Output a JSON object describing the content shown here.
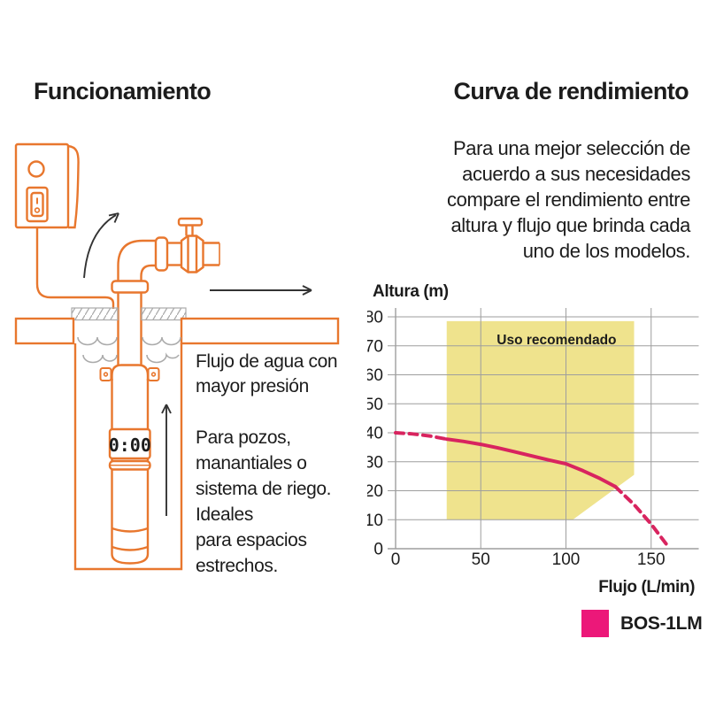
{
  "colors": {
    "diagram_orange": "#E8772E",
    "diagram_gray": "#ababab",
    "grid_gray": "#9e9e9e",
    "text_black": "#1c1c1c",
    "curve_pink": "#d8245f",
    "legend_pink": "#ec1879",
    "region_yellow": "#efe38d"
  },
  "left": {
    "title": "Funcionamiento",
    "caption_flow": "Flujo de agua con\nmayor presión",
    "caption_use": "Para pozos,\nmanantiales o\nsistema de riego.\nIdeales\npara espacios\nestrechos.",
    "pump_display": "0:00"
  },
  "right": {
    "title": "Curva de rendimiento",
    "paragraph": "Para una mejor selección de\nacuerdo a sus necesidades\ncompare el rendimiento entre\naltura y flujo que brinda cada\nuno de los modelos.",
    "legend": {
      "model": "BOS-1LM",
      "color": "#ec1879"
    }
  },
  "chart_data": {
    "type": "line",
    "title": "Curva de rendimiento",
    "xlabel": "Flujo (L/min)",
    "ylabel": "Altura (m)",
    "xlim": [
      0,
      178
    ],
    "ylim": [
      0,
      82
    ],
    "x_ticks": [
      0,
      50,
      100,
      150
    ],
    "y_ticks": [
      0,
      10,
      20,
      30,
      40,
      50,
      60,
      70,
      80
    ],
    "grid": true,
    "recommended_region": {
      "label": "Uso recomendado",
      "label_x": 94.5,
      "label_y": 70.5,
      "color": "#efe38d",
      "polygon": [
        [
          30,
          10
        ],
        [
          30,
          78.5
        ],
        [
          140,
          78.5
        ],
        [
          140,
          25.5
        ],
        [
          104,
          10
        ]
      ]
    },
    "series": [
      {
        "name": "BOS-1LM",
        "color": "#d8245f",
        "segments": [
          {
            "style": "dashed",
            "points": [
              [
                0,
                40
              ],
              [
                10,
                39.6
              ],
              [
                20,
                38.9
              ],
              [
                30,
                37.8
              ]
            ]
          },
          {
            "style": "solid",
            "points": [
              [
                30,
                37.8
              ],
              [
                40,
                37
              ],
              [
                50,
                36
              ],
              [
                60,
                34.8
              ],
              [
                70,
                33.4
              ],
              [
                80,
                32
              ],
              [
                90,
                30.6
              ],
              [
                100,
                29.3
              ],
              [
                110,
                26.9
              ],
              [
                120,
                24.2
              ],
              [
                129,
                21.4
              ]
            ]
          },
          {
            "style": "dashed",
            "points": [
              [
                129,
                21.4
              ],
              [
                140,
                15.2
              ],
              [
                150,
                8.5
              ],
              [
                159,
                1.5
              ]
            ]
          }
        ]
      }
    ]
  }
}
